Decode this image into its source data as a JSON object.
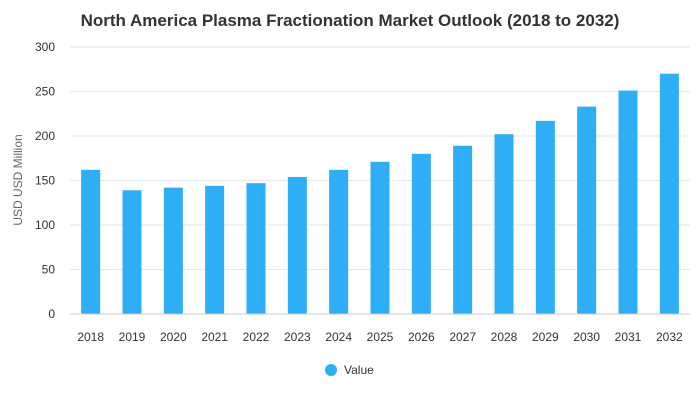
{
  "chart_data": {
    "type": "bar",
    "title": "North America Plasma Fractionation Market Outlook (2018 to 2032)",
    "xlabel": "",
    "ylabel": "USD USD Million",
    "categories": [
      "2018",
      "2019",
      "2020",
      "2021",
      "2022",
      "2023",
      "2024",
      "2025",
      "2026",
      "2027",
      "2028",
      "2029",
      "2030",
      "2031",
      "2032"
    ],
    "series": [
      {
        "name": "Value",
        "values": [
          162,
          139,
          142,
          144,
          147,
          154,
          162,
          171,
          180,
          189,
          202,
          217,
          233,
          251,
          270
        ]
      }
    ],
    "ylim": [
      0,
      300
    ],
    "yticks": [
      0,
      50,
      100,
      150,
      200,
      250,
      300
    ],
    "grid": true,
    "legend_position": "bottom-center",
    "colors": {
      "bar": "#2eaef7",
      "grid": "#e6e6e6",
      "axis": "#cccccc"
    }
  }
}
